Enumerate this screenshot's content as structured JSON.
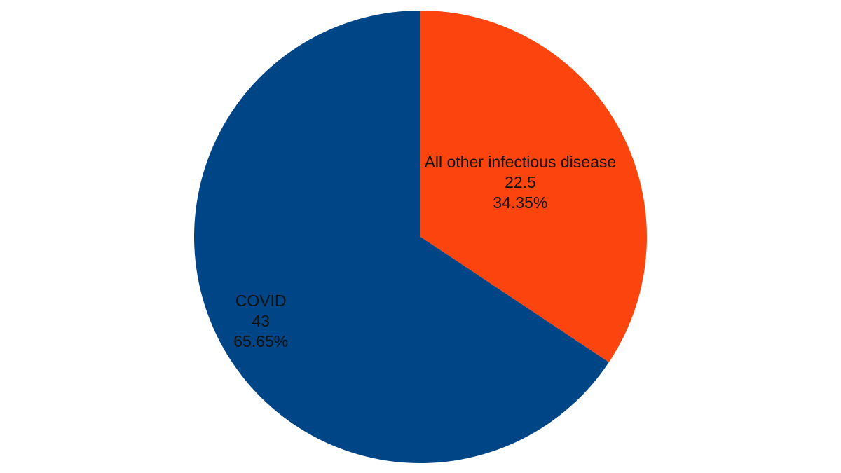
{
  "chart_data": {
    "type": "pie",
    "categories": [
      "All other infectious disease",
      "COVID"
    ],
    "values": [
      22.5,
      43
    ],
    "percent_labels": [
      "34.35%",
      "65.65%"
    ],
    "colors": [
      "#fc440f",
      "#004585"
    ]
  }
}
